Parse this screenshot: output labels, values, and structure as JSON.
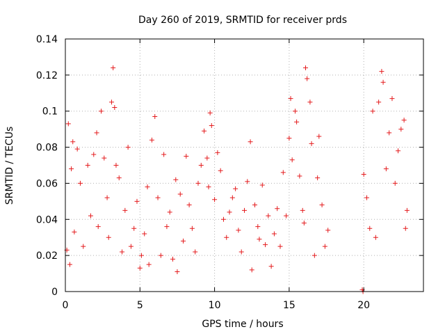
{
  "chart_data": {
    "type": "scatter",
    "title": "Day 260 of 2019, SRMTID for receiver prds",
    "xlabel": "GPS time / hours",
    "ylabel": "SRMTID / TECUs",
    "xlim": [
      0,
      24
    ],
    "ylim": [
      0,
      0.14
    ],
    "xticks": [
      0,
      5,
      10,
      15,
      20
    ],
    "xtick_labels": [
      "0",
      "5",
      "10",
      "15",
      "20"
    ],
    "yticks": [
      0,
      0.02,
      0.04,
      0.06,
      0.08,
      0.1,
      0.12,
      0.14
    ],
    "ytick_labels": [
      "0",
      "0.02",
      "0.04",
      "0.06",
      "0.08",
      "0.1",
      "0.12",
      "0.14"
    ],
    "grid": true,
    "marker": "plus",
    "series": [
      {
        "name": "SRMTID",
        "color": "#e41a1c",
        "points": [
          [
            0.1,
            0.023
          ],
          [
            0.2,
            0.093
          ],
          [
            0.3,
            0.015
          ],
          [
            0.4,
            0.068
          ],
          [
            0.5,
            0.083
          ],
          [
            0.6,
            0.033
          ],
          [
            0.8,
            0.079
          ],
          [
            1.0,
            0.06
          ],
          [
            1.2,
            0.025
          ],
          [
            1.5,
            0.07
          ],
          [
            1.7,
            0.042
          ],
          [
            1.9,
            0.076
          ],
          [
            2.1,
            0.088
          ],
          [
            2.2,
            0.036
          ],
          [
            2.4,
            0.1
          ],
          [
            2.6,
            0.074
          ],
          [
            2.8,
            0.052
          ],
          [
            2.9,
            0.03
          ],
          [
            3.1,
            0.105
          ],
          [
            3.2,
            0.124
          ],
          [
            3.3,
            0.102
          ],
          [
            3.4,
            0.07
          ],
          [
            3.6,
            0.063
          ],
          [
            3.8,
            0.022
          ],
          [
            4.0,
            0.045
          ],
          [
            4.2,
            0.08
          ],
          [
            4.4,
            0.025
          ],
          [
            4.6,
            0.035
          ],
          [
            4.8,
            0.05
          ],
          [
            5.0,
            0.013
          ],
          [
            5.1,
            0.02
          ],
          [
            5.3,
            0.032
          ],
          [
            5.5,
            0.058
          ],
          [
            5.6,
            0.015
          ],
          [
            5.8,
            0.084
          ],
          [
            6.0,
            0.097
          ],
          [
            6.2,
            0.052
          ],
          [
            6.4,
            0.02
          ],
          [
            6.6,
            0.076
          ],
          [
            6.8,
            0.036
          ],
          [
            7.0,
            0.044
          ],
          [
            7.2,
            0.018
          ],
          [
            7.4,
            0.062
          ],
          [
            7.5,
            0.011
          ],
          [
            7.7,
            0.054
          ],
          [
            7.9,
            0.028
          ],
          [
            8.1,
            0.075
          ],
          [
            8.3,
            0.048
          ],
          [
            8.5,
            0.035
          ],
          [
            8.7,
            0.022
          ],
          [
            8.9,
            0.06
          ],
          [
            9.1,
            0.07
          ],
          [
            9.3,
            0.089
          ],
          [
            9.5,
            0.074
          ],
          [
            9.6,
            0.058
          ],
          [
            9.7,
            0.099
          ],
          [
            9.8,
            0.092
          ],
          [
            10.0,
            0.051
          ],
          [
            10.2,
            0.077
          ],
          [
            10.4,
            0.067
          ],
          [
            10.6,
            0.04
          ],
          [
            10.8,
            0.03
          ],
          [
            11.0,
            0.044
          ],
          [
            11.2,
            0.052
          ],
          [
            11.4,
            0.057
          ],
          [
            11.6,
            0.034
          ],
          [
            11.8,
            0.022
          ],
          [
            12.0,
            0.045
          ],
          [
            12.2,
            0.061
          ],
          [
            12.4,
            0.083
          ],
          [
            12.5,
            0.012
          ],
          [
            12.7,
            0.048
          ],
          [
            12.9,
            0.036
          ],
          [
            13.0,
            0.029
          ],
          [
            13.2,
            0.059
          ],
          [
            13.4,
            0.026
          ],
          [
            13.6,
            0.042
          ],
          [
            13.8,
            0.014
          ],
          [
            14.0,
            0.032
          ],
          [
            14.2,
            0.046
          ],
          [
            14.4,
            0.025
          ],
          [
            14.6,
            0.066
          ],
          [
            14.8,
            0.042
          ],
          [
            15.0,
            0.085
          ],
          [
            15.1,
            0.107
          ],
          [
            15.2,
            0.073
          ],
          [
            15.4,
            0.1
          ],
          [
            15.5,
            0.094
          ],
          [
            15.7,
            0.064
          ],
          [
            15.9,
            0.045
          ],
          [
            16.0,
            0.038
          ],
          [
            16.1,
            0.124
          ],
          [
            16.2,
            0.118
          ],
          [
            16.4,
            0.105
          ],
          [
            16.5,
            0.082
          ],
          [
            16.7,
            0.02
          ],
          [
            16.9,
            0.063
          ],
          [
            17.0,
            0.086
          ],
          [
            17.2,
            0.048
          ],
          [
            17.4,
            0.025
          ],
          [
            17.6,
            0.034
          ],
          [
            19.9,
            0.001
          ],
          [
            19.95,
            0.0
          ],
          [
            20.0,
            0.065
          ],
          [
            20.2,
            0.052
          ],
          [
            20.4,
            0.035
          ],
          [
            20.6,
            0.1
          ],
          [
            20.8,
            0.03
          ],
          [
            21.0,
            0.105
          ],
          [
            21.2,
            0.122
          ],
          [
            21.3,
            0.116
          ],
          [
            21.5,
            0.068
          ],
          [
            21.7,
            0.088
          ],
          [
            21.9,
            0.107
          ],
          [
            22.1,
            0.06
          ],
          [
            22.3,
            0.078
          ],
          [
            22.5,
            0.09
          ],
          [
            22.7,
            0.095
          ],
          [
            22.8,
            0.035
          ],
          [
            22.9,
            0.045
          ]
        ]
      }
    ]
  }
}
